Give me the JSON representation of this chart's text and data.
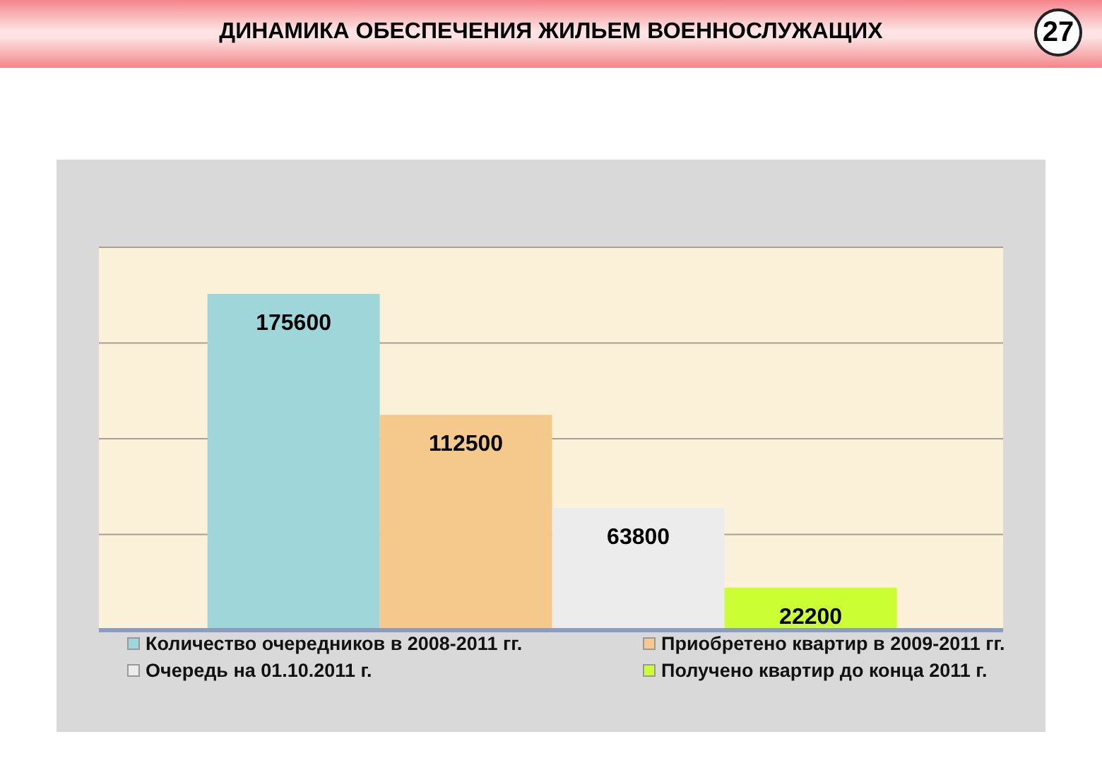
{
  "chart_data": {
    "type": "bar",
    "title": "ДИНАМИКА ОБЕСПЕЧЕНИЯ ЖИЛЬЕМ ВОЕННОСЛУЖАЩИХ",
    "annotations": [
      "27"
    ],
    "categories": [
      null
    ],
    "series": [
      {
        "name": "Количество очередников в 2008-2011 гг.",
        "color": "#9fd6da",
        "values": [
          175600
        ]
      },
      {
        "name": "Приобретено квартир в 2009-2011 гг.",
        "color": "#f5c98c",
        "values": [
          112500
        ]
      },
      {
        "name": "Очередь на 01.10.2011 г.",
        "color": "#ececec",
        "values": [
          63800
        ]
      },
      {
        "name": "Получено квартир до конца 2011 г.",
        "color": "#ccff33",
        "values": [
          22200
        ]
      }
    ],
    "ylim": [
      0,
      200000
    ],
    "grid": "y",
    "legend": "bottom",
    "tick_labels": false,
    "data_labels": true
  }
}
